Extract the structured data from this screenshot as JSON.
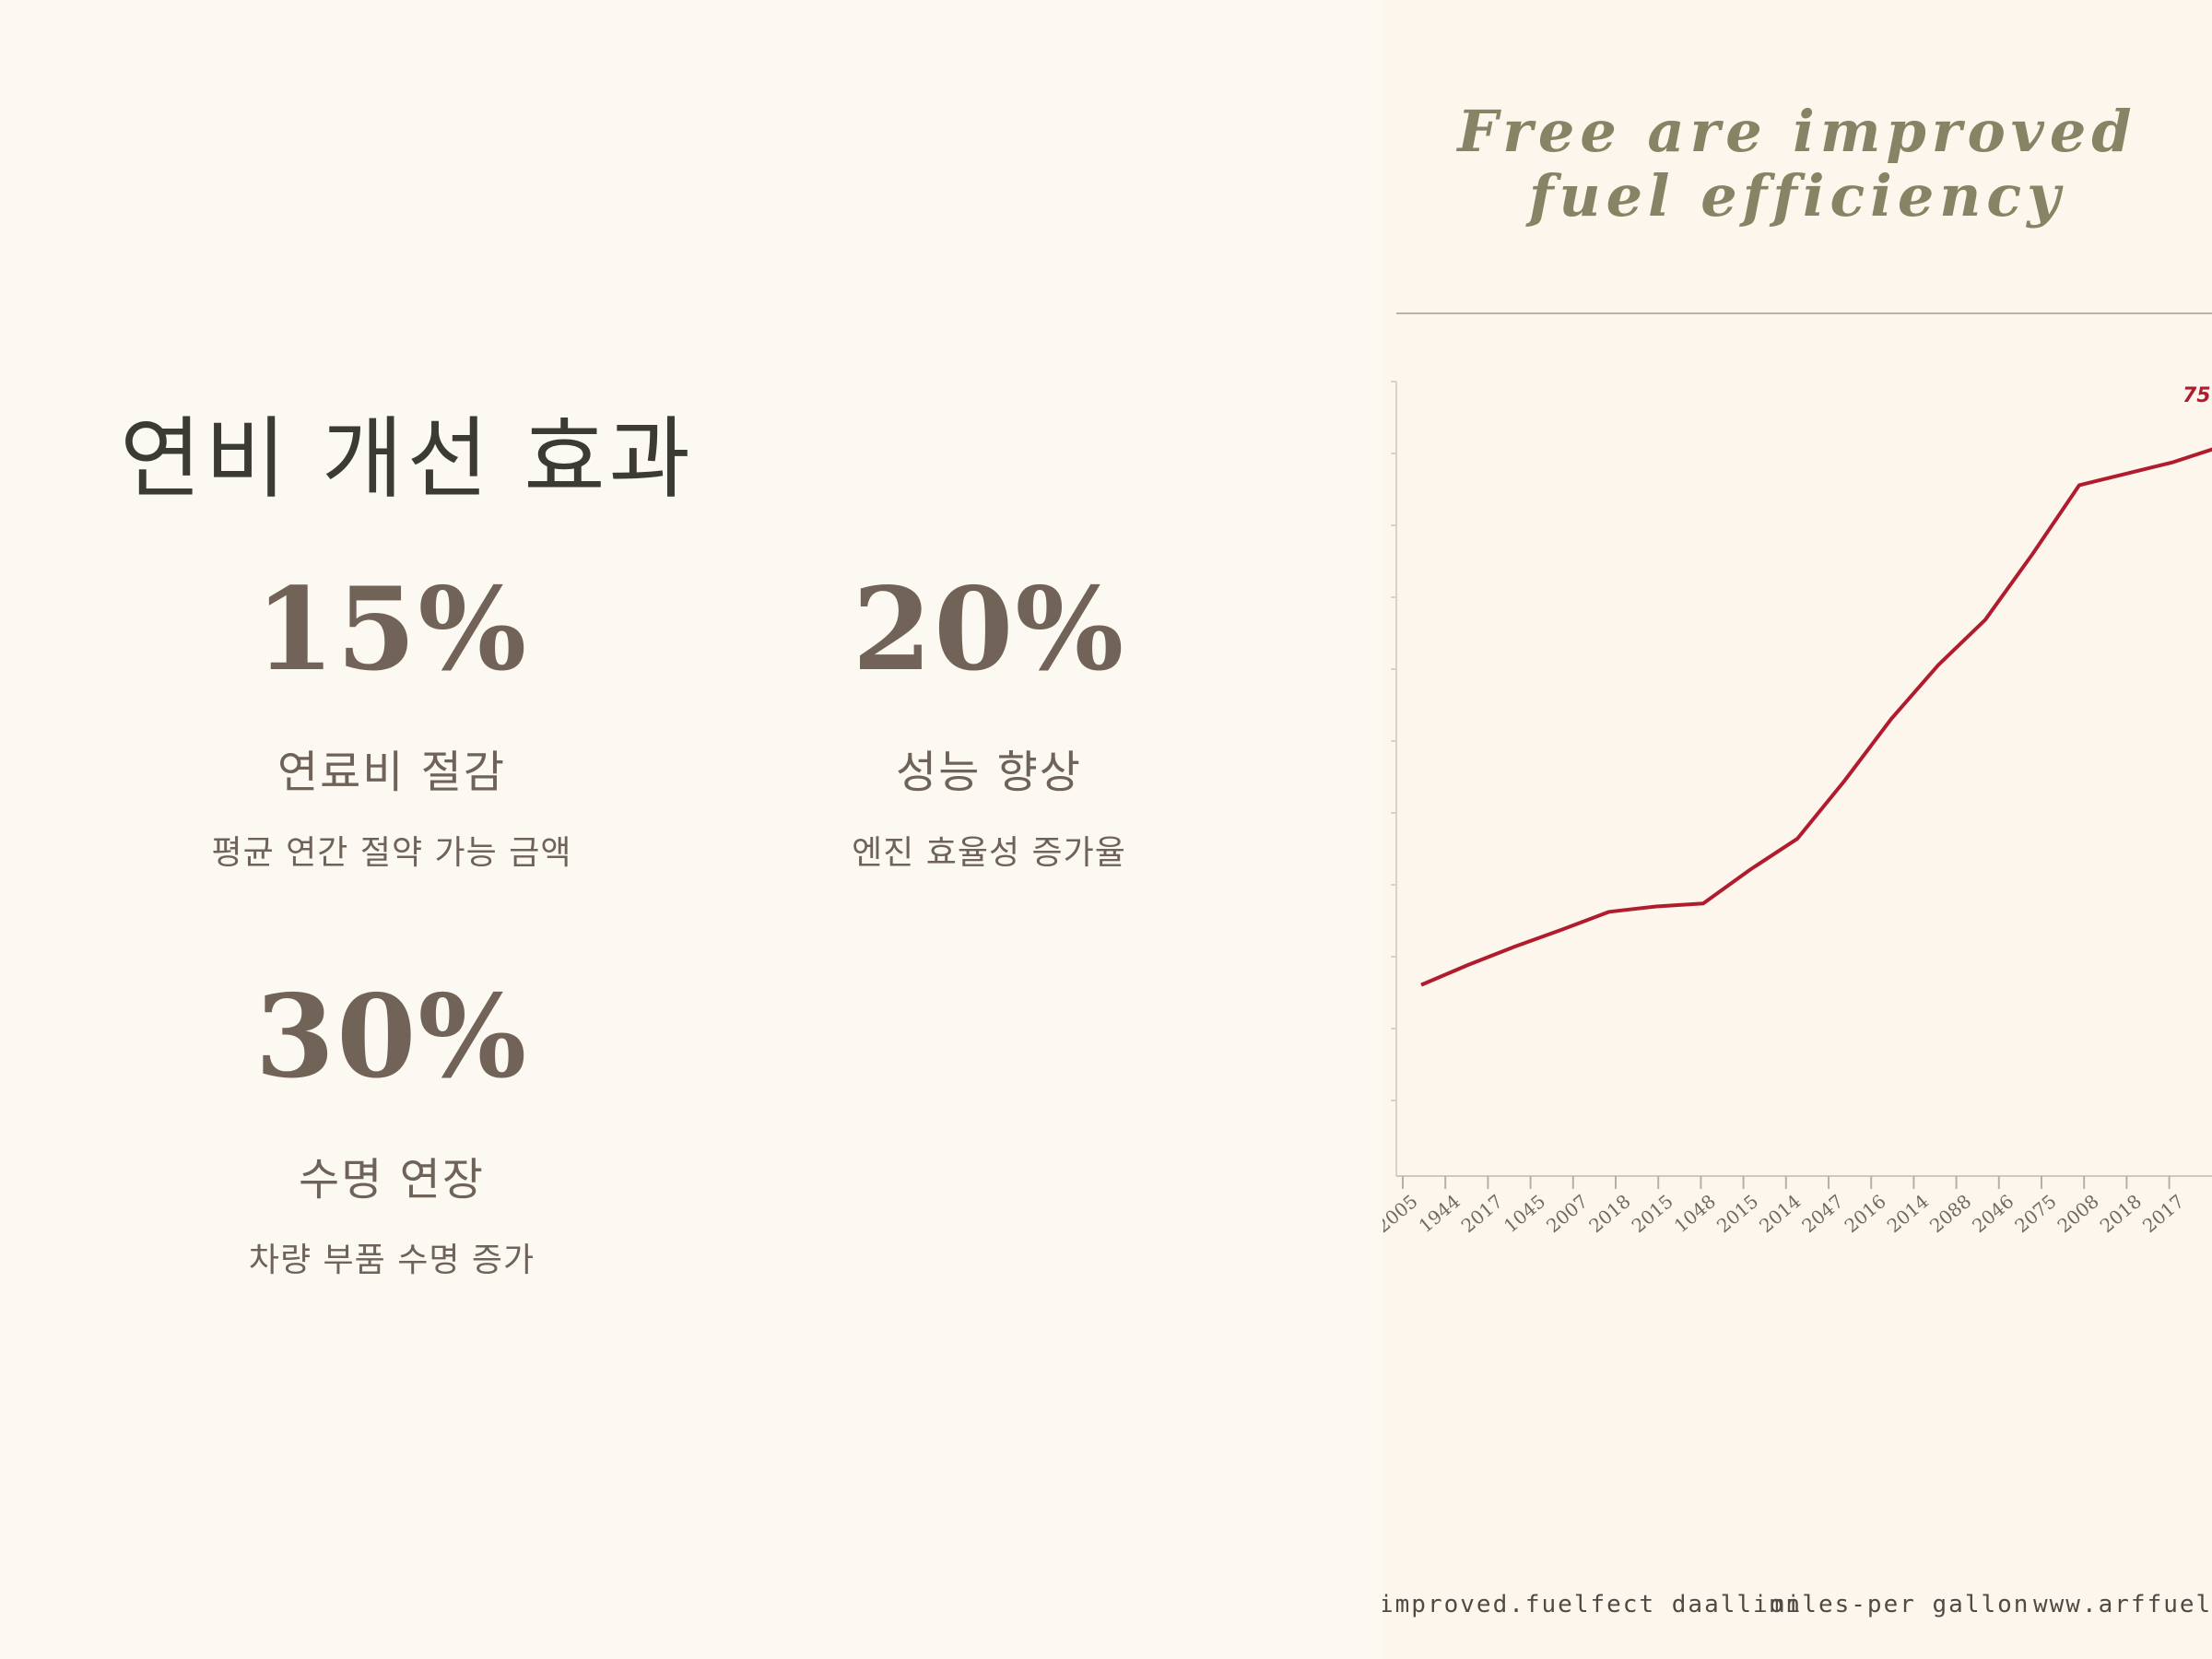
{
  "left_panel": {
    "heading": "연비 개선 효과",
    "stats": [
      {
        "value": "15%",
        "label": "연료비 절감",
        "desc": "평균 연간 절약 가능 금액"
      },
      {
        "value": "20%",
        "label": "성능 향상",
        "desc": "엔진 효율성 증가율"
      },
      {
        "value": "30%",
        "label": "수명 연장",
        "desc": "차량 부품 수명 증가"
      }
    ]
  },
  "chart_data": {
    "type": "line",
    "title": "Free are improved fuel efficiency",
    "title_lines": [
      "Free are improved",
      "fuel efficiency"
    ],
    "categories": [
      "2005",
      "1944",
      "2017",
      "1045",
      "2007",
      "2018",
      "2015",
      "1048",
      "2015",
      "2014",
      "2047",
      "2016",
      "2014",
      "2088",
      "2046",
      "2075",
      "2008",
      "2018",
      "2017"
    ],
    "series": [
      {
        "values": [
          10,
          12.6,
          15,
          17.2,
          19.5,
          20.2,
          20.6,
          25,
          29,
          36.5,
          44.6,
          51.6,
          57.5,
          66,
          75,
          76.5,
          78,
          80,
          82
        ],
        "color": "#b01c2e"
      }
    ],
    "data_label": "75",
    "line_color": "#b01c2e",
    "grid": false,
    "legend": "none"
  },
  "footer": {
    "items": [
      "improved.fuelfect daallion",
      "miles-per gallon",
      "www.arffuel.com"
    ]
  }
}
